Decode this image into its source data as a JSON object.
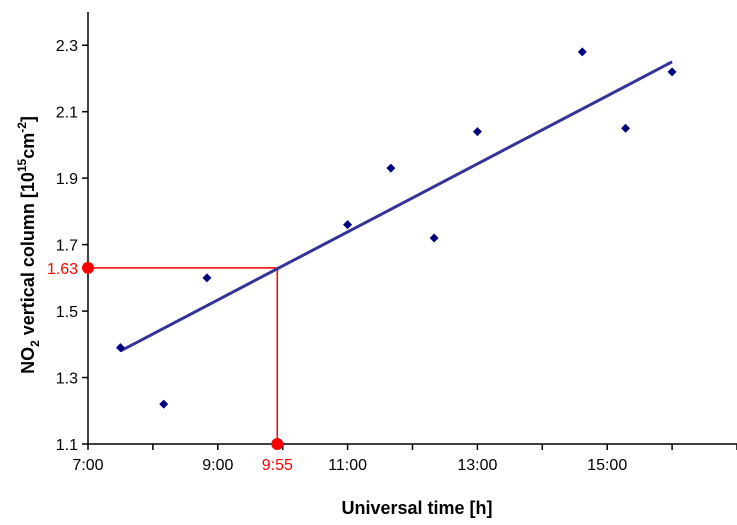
{
  "chart_data": {
    "type": "scatter",
    "xlabel": "Universal time [h]",
    "ylabel": {
      "prefix": "NO",
      "sub": "2",
      "middle": " vertical column [10",
      "exp1": "15",
      "unit": "cm",
      "exp2": "-2",
      "close": "]"
    },
    "xlim": [
      "7:00",
      "17:00"
    ],
    "ylim": [
      1.1,
      2.4
    ],
    "x_ticks": [
      "7:00",
      "9:00",
      "11:00",
      "13:00",
      "15:00"
    ],
    "y_ticks": [
      "1.1",
      "1.3",
      "1.5",
      "1.7",
      "1.9",
      "2.1",
      "2.3"
    ],
    "grid": false,
    "series": [
      {
        "kind": "points",
        "color": "#000080",
        "marker": "diamond",
        "points": [
          {
            "x": "7:30",
            "y": 1.39
          },
          {
            "x": "8:10",
            "y": 1.22
          },
          {
            "x": "8:50",
            "y": 1.6
          },
          {
            "x": "11:00",
            "y": 1.76
          },
          {
            "x": "11:40",
            "y": 1.93
          },
          {
            "x": "12:20",
            "y": 1.72
          },
          {
            "x": "13:00",
            "y": 2.04
          },
          {
            "x": "14:37",
            "y": 2.28
          },
          {
            "x": "15:17",
            "y": 2.05
          },
          {
            "x": "16:00",
            "y": 2.22
          }
        ]
      },
      {
        "kind": "trendline",
        "color": "#333399",
        "start": {
          "x": "7:30",
          "y": 1.38
        },
        "end": {
          "x": "16:00",
          "y": 2.25
        }
      }
    ],
    "annotation": {
      "color": "#ff0000",
      "x": "9:55",
      "y": 1.63,
      "x_label": "9:55",
      "y_label": "1.63"
    }
  }
}
